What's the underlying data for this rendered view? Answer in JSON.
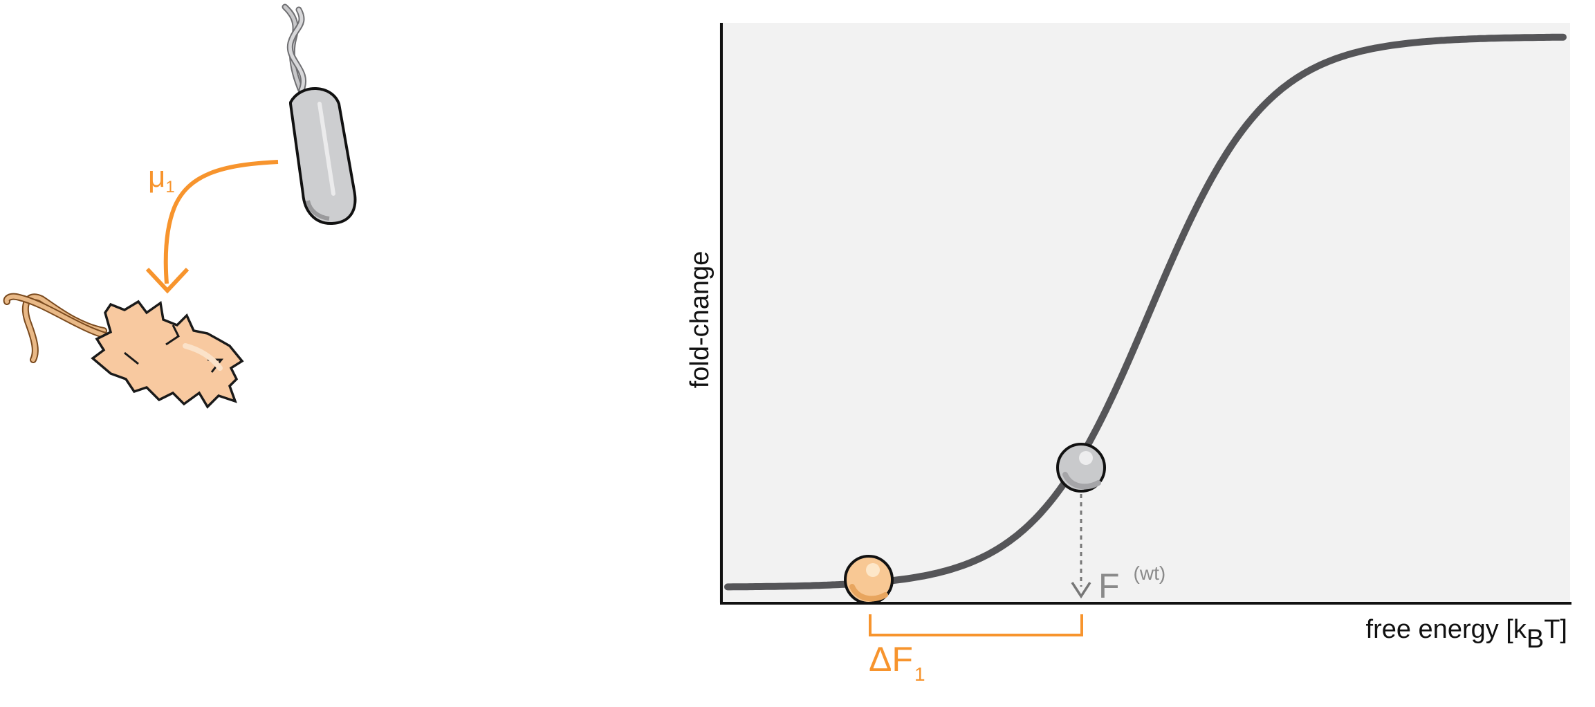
{
  "labels": {
    "mutation": "μ",
    "mutation_sub": "1",
    "y_axis": "fold-change",
    "x_axis_main": "free energy [k",
    "x_axis_sub": "B",
    "x_axis_end": "T]",
    "wt_main": "F",
    "wt_sup": "(wt)",
    "delta_main": "ΔF",
    "delta_sub": "1"
  },
  "colors": {
    "accent": "#f7942d",
    "curve": "#555558",
    "plot_bg": "#f2f2f2",
    "wt_text": "#8a8a8a",
    "mutant_fill": "#f8c894",
    "wt_cell_fill": "#cdced0"
  },
  "chart_data": {
    "type": "line",
    "curve": "sigmoid",
    "xlabel": "free energy [kBT]",
    "ylabel": "fold-change",
    "grid": false,
    "markers": [
      {
        "name": "mutant",
        "color": "orange"
      },
      {
        "name": "wild type",
        "color": "gray"
      }
    ]
  }
}
